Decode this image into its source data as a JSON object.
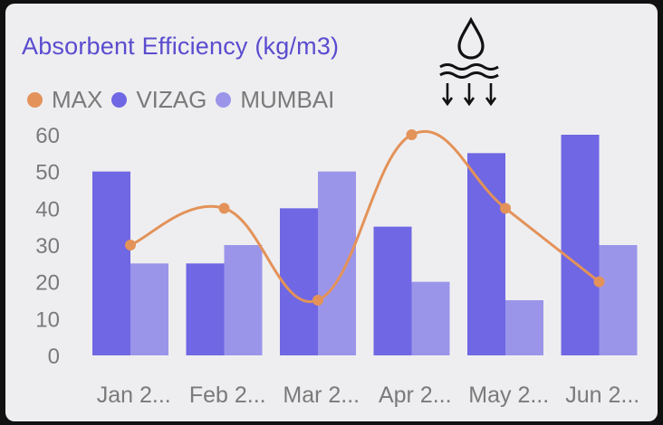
{
  "colors": {
    "max": "#e39259",
    "vizag": "#6f67e3",
    "mumbai": "#9b95ea",
    "axis_text": "#7a7a7a",
    "title": "#5a4ccf"
  },
  "icon": "water-absorption-icon",
  "chart_data": {
    "type": "bar",
    "title": "Absorbent Efficiency (kg/m3)",
    "categories": [
      "Jan 2...",
      "Feb 2...",
      "Mar 2...",
      "Apr 2...",
      "May 2...",
      "Jun 2..."
    ],
    "yticks": [
      "0",
      "10",
      "20",
      "30",
      "40",
      "50",
      "60"
    ],
    "ylim": [
      0,
      60
    ],
    "grid": false,
    "legend_position": "top-left",
    "series": [
      {
        "name": "MAX",
        "type": "line",
        "smooth": true,
        "values": [
          30,
          40,
          15,
          60,
          40,
          20
        ]
      },
      {
        "name": "VIZAG",
        "type": "bar",
        "values": [
          50,
          25,
          40,
          35,
          55,
          60
        ]
      },
      {
        "name": "MUMBAI",
        "type": "bar",
        "values": [
          25,
          30,
          50,
          20,
          15,
          30
        ]
      }
    ]
  }
}
